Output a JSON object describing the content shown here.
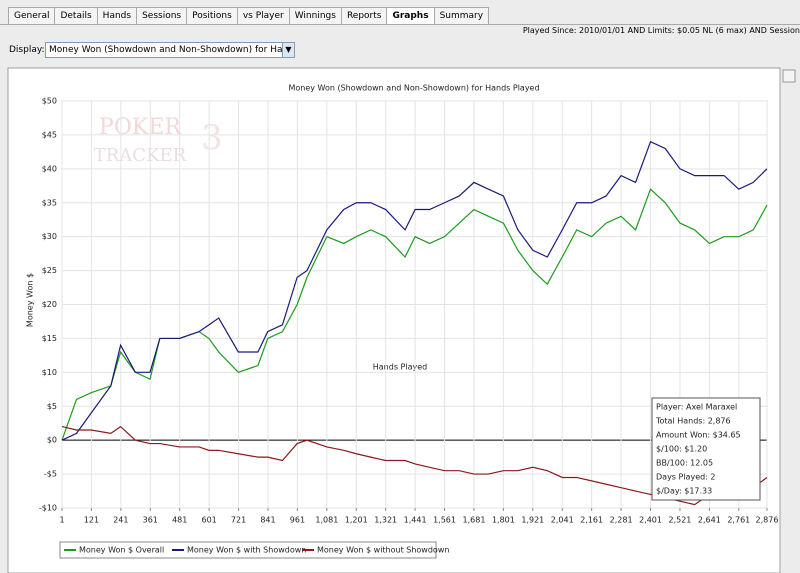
{
  "tabs": [
    "General",
    "Details",
    "Hands",
    "Sessions",
    "Positions",
    "vs Player",
    "Winnings",
    "Reports",
    "Graphs",
    "Summary"
  ],
  "active_tab": 8,
  "filter_text": "Played Since: 2010/01/01 AND Limits: $0.05 NL (6 max) AND Session",
  "display_label": "Display:",
  "display_value": "Money Won (Showdown and Non-Showdown) for Hands Played",
  "chart_data": {
    "type": "line",
    "title": "Money Won (Showdown and Non-Showdown) for Hands Played",
    "watermark": [
      "POKER",
      "TRACKER",
      "3"
    ],
    "x_label": "Hands Played",
    "y_label": "Money Won $",
    "x": [
      1,
      60,
      120,
      200,
      240,
      300,
      360,
      400,
      480,
      560,
      600,
      640,
      720,
      800,
      840,
      900,
      960,
      1000,
      1081,
      1150,
      1201,
      1260,
      1321,
      1400,
      1441,
      1500,
      1561,
      1621,
      1681,
      1740,
      1801,
      1860,
      1921,
      1980,
      2041,
      2100,
      2161,
      2220,
      2281,
      2340,
      2401,
      2461,
      2521,
      2581,
      2641,
      2701,
      2761,
      2820,
      2876
    ],
    "series": [
      {
        "name": "Money Won $ Overall",
        "color": "#1e9a1e",
        "values": [
          0,
          6,
          7,
          8,
          13,
          10,
          9,
          15,
          15,
          16,
          15,
          13,
          10,
          11,
          15,
          16,
          20,
          24,
          30,
          29,
          30,
          31,
          30,
          27,
          30,
          29,
          30,
          32,
          34,
          33,
          32,
          28,
          25,
          23,
          27,
          31,
          30,
          32,
          33,
          31,
          37,
          35,
          32,
          31,
          29,
          30,
          30,
          31,
          34.65
        ]
      },
      {
        "name": "Money Won $ with Showdown",
        "color": "#1a1a7a",
        "values": [
          0,
          1,
          4,
          8,
          14,
          10,
          10,
          15,
          15,
          16,
          17,
          18,
          13,
          13,
          16,
          17,
          24,
          25,
          31,
          34,
          35,
          35,
          34,
          31,
          34,
          34,
          35,
          36,
          38,
          37,
          36,
          31,
          28,
          27,
          31,
          35,
          35,
          36,
          39,
          38,
          44,
          43,
          40,
          39,
          39,
          39,
          37,
          38,
          40
        ]
      },
      {
        "name": "Money Won $ without Showdown",
        "color": "#8b1a1a",
        "values": [
          2,
          1.5,
          1.5,
          1,
          2,
          0,
          -0.5,
          -0.5,
          -1,
          -1,
          -1.5,
          -1.5,
          -2,
          -2.5,
          -2.5,
          -3,
          -0.5,
          0,
          -1,
          -1.5,
          -2,
          -2.5,
          -3,
          -3,
          -3.5,
          -4,
          -4.5,
          -4.5,
          -5,
          -5,
          -4.5,
          -4.5,
          -4,
          -4.5,
          -5.5,
          -5.5,
          -6,
          -6.5,
          -7,
          -7.5,
          -8,
          -8.5,
          -9,
          -9.5,
          -8,
          -7,
          -6.5,
          -7,
          -5.5
        ]
      }
    ],
    "xlim": [
      1,
      2876
    ],
    "xticks": [
      1,
      121,
      241,
      361,
      481,
      601,
      721,
      841,
      961,
      {
        "value": 1081,
        "label": "1,081"
      },
      {
        "value": 1201,
        "label": "1,201"
      },
      {
        "value": 1321,
        "label": "1,321"
      },
      {
        "value": 1441,
        "label": "1,441"
      },
      {
        "value": 1561,
        "label": "1,561"
      },
      {
        "value": 1681,
        "label": "1,681"
      },
      {
        "value": 1801,
        "label": "1,801"
      },
      {
        "value": 1921,
        "label": "1,921"
      },
      {
        "value": 2041,
        "label": "2,041"
      },
      {
        "value": 2161,
        "label": "2,161"
      },
      {
        "value": 2281,
        "label": "2,281"
      },
      {
        "value": 2401,
        "label": "2,401"
      },
      {
        "value": 2521,
        "label": "2,521"
      },
      {
        "value": 2641,
        "label": "2,641"
      },
      {
        "value": 2761,
        "label": "2,761"
      },
      {
        "value": 2876,
        "label": "2,876"
      }
    ],
    "ylim": [
      -10,
      50
    ],
    "yticks": [
      {
        "value": -10,
        "label": "-$10"
      },
      {
        "value": -5,
        "label": "-$5"
      },
      {
        "value": 0,
        "label": "$0"
      },
      {
        "value": 5,
        "label": "$5"
      },
      {
        "value": 10,
        "label": "$10"
      },
      {
        "value": 15,
        "label": "$15"
      },
      {
        "value": 20,
        "label": "$20"
      },
      {
        "value": 25,
        "label": "$25"
      },
      {
        "value": 30,
        "label": "$30"
      },
      {
        "value": 35,
        "label": "$35"
      },
      {
        "value": 40,
        "label": "$40"
      },
      {
        "value": 45,
        "label": "$45"
      },
      {
        "value": 50,
        "label": "$50"
      }
    ],
    "grid": true,
    "legend": "bottom-left",
    "tooltip": [
      "Player: Axel Maraxel",
      "Total Hands: 2,876",
      "Amount Won: $34.65",
      "$/100: $1.20",
      "BB/100: 12.05",
      "Days Played: 2",
      "$/Day: $17.33"
    ]
  }
}
